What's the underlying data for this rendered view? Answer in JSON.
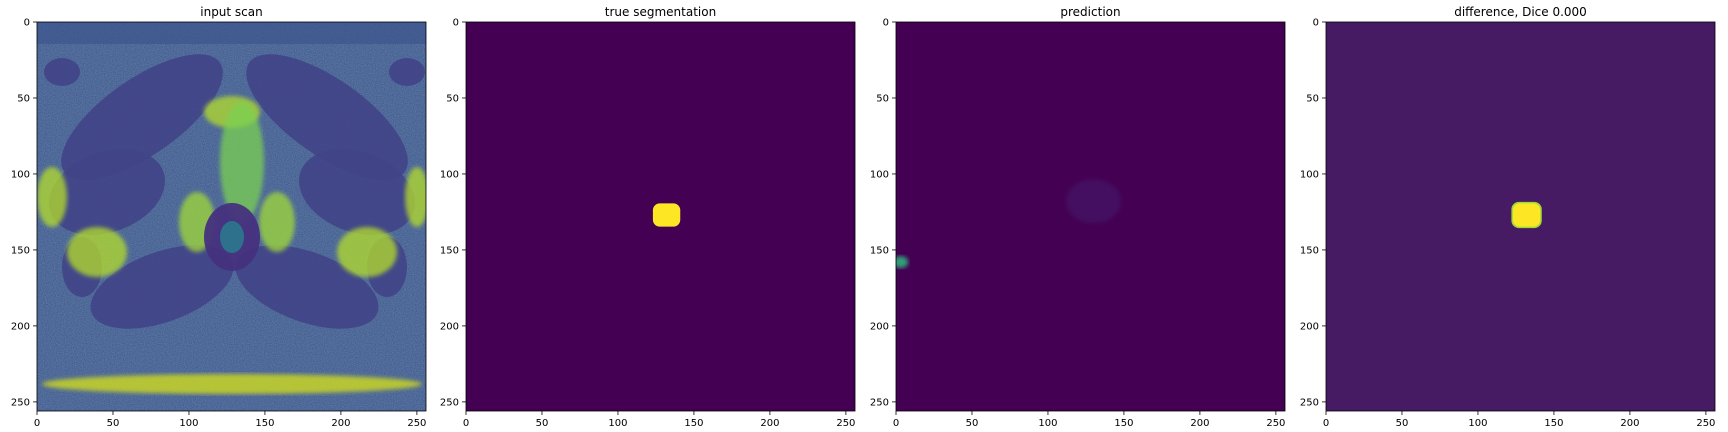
{
  "figure": {
    "panels": [
      {
        "id": "input",
        "title": "input scan"
      },
      {
        "id": "truth",
        "title": "true segmentation"
      },
      {
        "id": "pred",
        "title": "prediction"
      },
      {
        "id": "diff",
        "title": "difference, Dice 0.000"
      }
    ]
  },
  "chart_data": [
    {
      "type": "heatmap",
      "title": "input scan",
      "colormap": "viridis",
      "image_shape": [
        256,
        256
      ],
      "content": "axial MRI scan of pelvis (greyscale mapped to viridis)",
      "xlim": [
        0,
        256
      ],
      "ylim": [
        256,
        0
      ],
      "xticks": [
        0,
        50,
        100,
        150,
        200,
        250
      ],
      "yticks": [
        0,
        50,
        100,
        150,
        200,
        250
      ],
      "xlabel": "",
      "ylabel": ""
    },
    {
      "type": "heatmap",
      "title": "true segmentation",
      "colormap": "viridis",
      "image_shape": [
        256,
        256
      ],
      "background_value": 0,
      "blobs": [
        {
          "label": 1,
          "center": [
            132,
            127
          ],
          "radius": 9
        }
      ],
      "xlim": [
        0,
        256
      ],
      "ylim": [
        256,
        0
      ],
      "xticks": [
        0,
        50,
        100,
        150,
        200,
        250
      ],
      "yticks": [
        0,
        50,
        100,
        150,
        200,
        250
      ],
      "xlabel": "",
      "ylabel": ""
    },
    {
      "type": "heatmap",
      "title": "prediction",
      "colormap": "viridis",
      "image_shape": [
        256,
        256
      ],
      "background_value": 0,
      "faint_regions": [
        {
          "center": [
            130,
            118
          ],
          "radius": 18,
          "intensity": 0.12
        },
        {
          "center": [
            3,
            158
          ],
          "radius": 5,
          "intensity": 0.35
        }
      ],
      "xlim": [
        0,
        256
      ],
      "ylim": [
        256,
        0
      ],
      "xticks": [
        0,
        50,
        100,
        150,
        200,
        250
      ],
      "yticks": [
        0,
        50,
        100,
        150,
        200,
        250
      ],
      "xlabel": "",
      "ylabel": ""
    },
    {
      "type": "heatmap",
      "title": "difference, Dice 0.000",
      "colormap": "viridis",
      "image_shape": [
        256,
        256
      ],
      "background_value": 0.03,
      "blobs": [
        {
          "label": 1,
          "center": [
            132,
            127
          ],
          "radius": 9
        }
      ],
      "dice": 0.0,
      "xlim": [
        0,
        256
      ],
      "ylim": [
        256,
        0
      ],
      "xticks": [
        0,
        50,
        100,
        150,
        200,
        250
      ],
      "yticks": [
        0,
        50,
        100,
        150,
        200,
        250
      ],
      "xlabel": "",
      "ylabel": ""
    }
  ],
  "colors": {
    "viridis_low": "#440154",
    "viridis_diff_bg": "#471b63",
    "viridis_high": "#fde725",
    "viridis_mid": "#21918c",
    "viridis_teal": "#2fb47c",
    "viridis_green": "#a0da39"
  }
}
